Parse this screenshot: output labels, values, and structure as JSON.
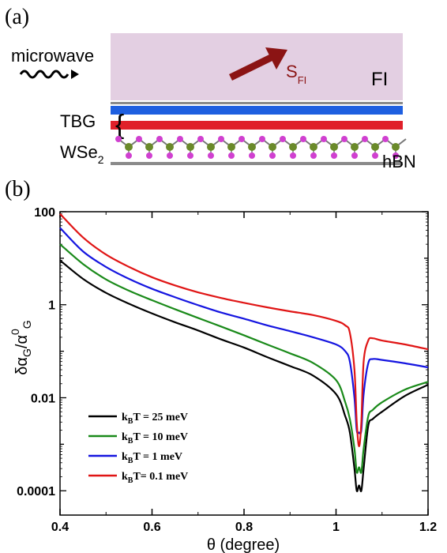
{
  "panel_a": {
    "label": "(a)",
    "microwave": "microwave",
    "fi": "FI",
    "spin_main": "S",
    "spin_sub": "FI",
    "tbg": "TBG",
    "wse_main": "WSe",
    "wse_sub": "2",
    "hbn": "hBN",
    "colors": {
      "fi_box": "#e3cfe2",
      "arrow": "#8b1414",
      "blue_layer": "#1e5fe0",
      "red_layer": "#e0202a",
      "gray_layer": "#8a8a8a",
      "atom_green": "#6a8a2a",
      "atom_magenta": "#d040d0"
    }
  },
  "panel_b": {
    "label": "(b)"
  },
  "chart_data": {
    "type": "line",
    "xlabel": "θ (degree)",
    "ylabel": "δα_G/α^0_G",
    "yscale": "log",
    "xlim": [
      0.4,
      1.2
    ],
    "ylim": [
      3e-05,
      100
    ],
    "xticks": [
      0.4,
      0.6,
      0.8,
      1.0,
      1.2
    ],
    "xtick_labels": [
      "0.4",
      "0.6",
      "0.8",
      "1",
      "1.2"
    ],
    "yticks": [
      100,
      1,
      0.01,
      0.0001
    ],
    "ytick_labels": [
      "100",
      "1",
      "0.01",
      "0.0001"
    ],
    "legend_position": "bottom-left",
    "series": [
      {
        "name": "k_BT = 25 meV",
        "color": "#000000",
        "x": [
          0.4,
          0.45,
          0.5,
          0.55,
          0.6,
          0.65,
          0.7,
          0.75,
          0.8,
          0.85,
          0.9,
          0.95,
          1.0,
          1.02,
          1.03,
          1.04,
          1.045,
          1.05,
          1.055,
          1.06,
          1.07,
          1.08,
          1.1,
          1.15,
          1.2
        ],
        "y": [
          9,
          3.6,
          1.8,
          1.05,
          0.65,
          0.42,
          0.28,
          0.18,
          0.12,
          0.075,
          0.048,
          0.03,
          0.012,
          0.004,
          0.0018,
          0.0003,
          0.0001,
          0.00013,
          0.0001,
          0.0003,
          0.0025,
          0.0035,
          0.005,
          0.011,
          0.019
        ]
      },
      {
        "name": "k_BT = 10 meV",
        "color": "#1a8a1a",
        "x": [
          0.4,
          0.45,
          0.5,
          0.55,
          0.6,
          0.65,
          0.7,
          0.75,
          0.8,
          0.85,
          0.9,
          0.95,
          1.0,
          1.02,
          1.03,
          1.04,
          1.045,
          1.05,
          1.055,
          1.06,
          1.07,
          1.08,
          1.1,
          1.15,
          1.2
        ],
        "y": [
          20,
          7.5,
          3.5,
          2.0,
          1.25,
          0.8,
          0.52,
          0.34,
          0.22,
          0.14,
          0.09,
          0.056,
          0.024,
          0.008,
          0.0035,
          0.0008,
          0.00025,
          0.00032,
          0.00025,
          0.0008,
          0.004,
          0.0055,
          0.008,
          0.015,
          0.022
        ]
      },
      {
        "name": "k_BT = 1 meV",
        "color": "#1515e0",
        "x": [
          0.4,
          0.45,
          0.5,
          0.55,
          0.6,
          0.65,
          0.7,
          0.75,
          0.8,
          0.85,
          0.9,
          0.95,
          1.0,
          1.02,
          1.03,
          1.04,
          1.045,
          1.05,
          1.055,
          1.06,
          1.07,
          1.08,
          1.1,
          1.15,
          1.2
        ],
        "y": [
          45,
          14,
          6.5,
          3.6,
          2.2,
          1.45,
          0.98,
          0.68,
          0.5,
          0.36,
          0.27,
          0.2,
          0.14,
          0.1,
          0.06,
          0.01,
          0.002,
          0.0018,
          0.002,
          0.012,
          0.055,
          0.068,
          0.065,
          0.055,
          0.045
        ]
      },
      {
        "name": "k_BT= 0.1 meV",
        "color": "#e01515",
        "x": [
          0.4,
          0.45,
          0.5,
          0.55,
          0.6,
          0.65,
          0.7,
          0.75,
          0.8,
          0.85,
          0.9,
          0.95,
          1.0,
          1.02,
          1.03,
          1.04,
          1.045,
          1.05,
          1.055,
          1.06,
          1.07,
          1.08,
          1.1,
          1.15,
          1.2
        ],
        "y": [
          90,
          28,
          12,
          6.5,
          3.9,
          2.6,
          1.85,
          1.4,
          1.1,
          0.88,
          0.72,
          0.6,
          0.45,
          0.36,
          0.25,
          0.04,
          0.003,
          0.0009,
          0.003,
          0.06,
          0.17,
          0.19,
          0.17,
          0.14,
          0.11
        ]
      }
    ]
  }
}
